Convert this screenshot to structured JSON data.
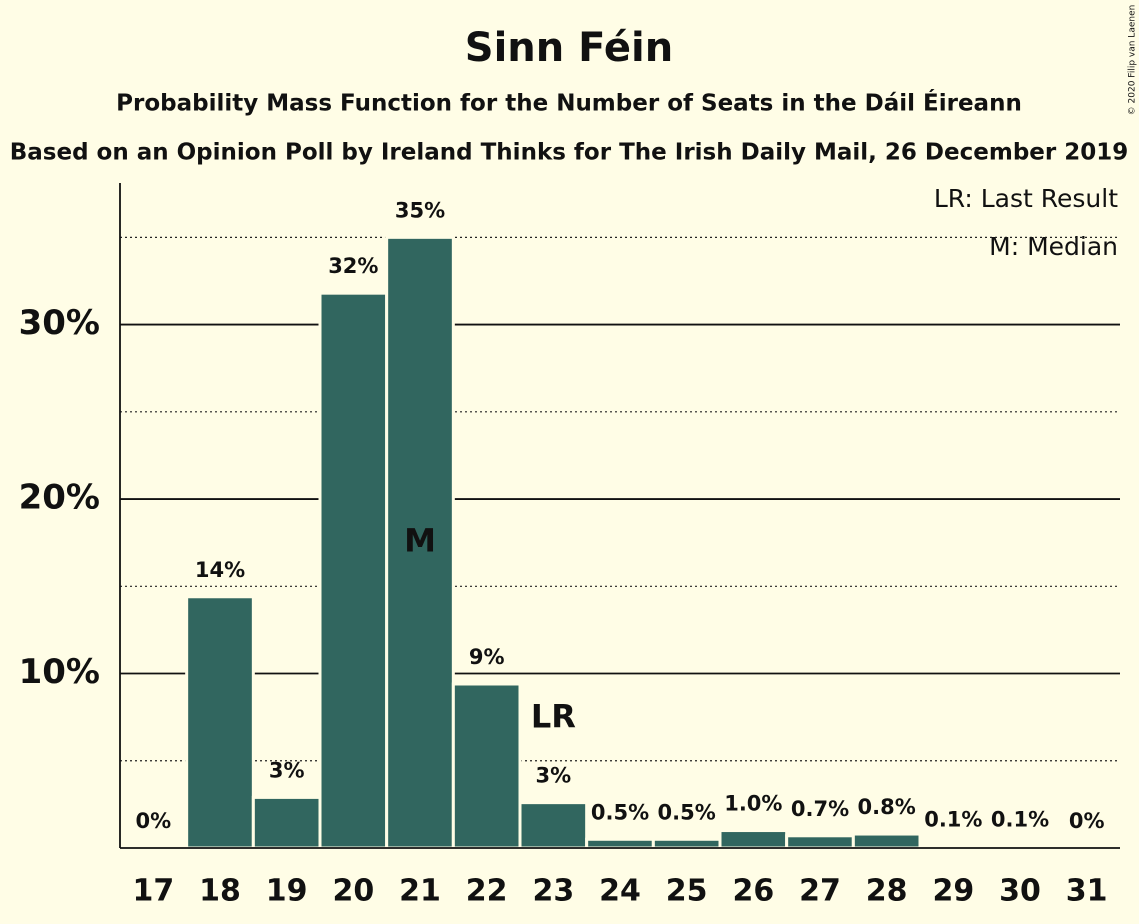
{
  "chart_data": {
    "type": "bar",
    "title": "Sinn Féin",
    "subtitles": [
      "Probability Mass Function for the Number of Seats in the Dáil Éireann",
      "Based on an Opinion Poll by Ireland Thinks for The Irish Daily Mail, 26 December 2019"
    ],
    "categories": [
      "17",
      "18",
      "19",
      "20",
      "21",
      "22",
      "23",
      "24",
      "25",
      "26",
      "27",
      "28",
      "29",
      "30",
      "31"
    ],
    "values": [
      0,
      14.4,
      2.9,
      31.8,
      35,
      9.4,
      2.6,
      0.5,
      0.5,
      1.0,
      0.7,
      0.8,
      0.1,
      0.1,
      0
    ],
    "value_labels": [
      "0%",
      "14%",
      "3%",
      "32%",
      "35%",
      "9%",
      "3%",
      "0.5%",
      "0.5%",
      "1.0%",
      "0.7%",
      "0.8%",
      "0.1%",
      "0.1%",
      "0%"
    ],
    "color": "#31665f",
    "ylim": [
      0,
      38
    ],
    "yticks": [
      {
        "value": 10,
        "label": "10%"
      },
      {
        "value": 20,
        "label": "20%"
      },
      {
        "value": 30,
        "label": "30%"
      }
    ],
    "minor_yticks": [
      5,
      15,
      25,
      35
    ],
    "grid": true,
    "annotations": [
      {
        "text": "M",
        "category": "21",
        "position": "inside"
      },
      {
        "text": "LR",
        "category": "23",
        "position": "above"
      }
    ],
    "legend": [
      "LR: Last Result",
      "M: Median"
    ],
    "legend_position": "top-right",
    "copyright": "© 2020 Filip van Laenen"
  }
}
